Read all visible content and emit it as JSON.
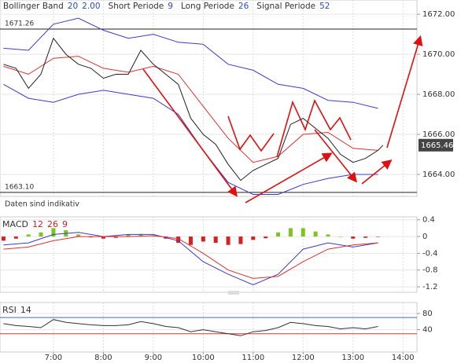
{
  "chart_data": [
    {
      "type": "line",
      "indicators": [
        {
          "name": "Bollinger Band",
          "params": [
            "20",
            "2.00"
          ]
        },
        {
          "name": "Short Periode",
          "params": [
            "9"
          ]
        },
        {
          "name": "Long Periode",
          "params": [
            "26"
          ]
        },
        {
          "name": "Signal Periode",
          "params": [
            "52"
          ]
        }
      ],
      "note": "Daten sind indikativ",
      "last_price": 1665.46,
      "hlines": [
        1671.26,
        {
          "value": 1663.1,
          "label": "1663.10"
        }
      ],
      "xlim": [
        5.93,
        14.28
      ],
      "ylim": [
        1662.9,
        1672.71
      ],
      "yticks": [
        {
          "value": 1672,
          "label": "1672.00"
        },
        {
          "value": 1670,
          "label": "1670.00"
        },
        {
          "value": 1668,
          "label": "1668.00"
        },
        {
          "value": 1666,
          "label": "1666.00"
        },
        {
          "value": 1664,
          "label": "1664.00"
        }
      ],
      "series": [
        {
          "color": "#3a3ad0",
          "x": [
            6.0,
            6.5,
            7.0,
            7.5,
            8.0,
            8.5,
            9.0,
            9.5,
            10.0,
            10.5,
            11.0,
            11.5,
            12.0,
            12.5,
            13.0,
            13.5
          ],
          "values": [
            1670.3,
            1670.2,
            1671.5,
            1671.8,
            1671.2,
            1670.8,
            1671.0,
            1670.6,
            1670.5,
            1669.5,
            1669.2,
            1668.5,
            1668.3,
            1667.7,
            1667.6,
            1667.3
          ]
        },
        {
          "color": "#3a3ad0",
          "x": [
            6.0,
            6.5,
            7.0,
            7.5,
            8.0,
            8.5,
            9.0,
            9.5,
            10.0,
            10.5,
            11.0,
            11.5,
            12.0,
            12.5,
            13.0,
            13.5
          ],
          "values": [
            1668.5,
            1667.8,
            1667.6,
            1668.0,
            1668.2,
            1668.0,
            1667.8,
            1667.0,
            1665.2,
            1663.6,
            1663.0,
            1663.0,
            1663.5,
            1663.8,
            1664.0,
            1664.0
          ]
        },
        {
          "color": "#e03030",
          "x": [
            6.0,
            6.5,
            7.0,
            7.5,
            8.0,
            8.5,
            9.0,
            9.5,
            10.0,
            10.5,
            11.0,
            11.5,
            12.0,
            12.5,
            13.0,
            13.5
          ],
          "values": [
            1669.4,
            1669.0,
            1669.8,
            1669.9,
            1669.3,
            1669.1,
            1669.4,
            1669.0,
            1667.4,
            1665.8,
            1664.6,
            1664.9,
            1666.0,
            1666.1,
            1665.3,
            1665.2
          ]
        },
        {
          "color": "#222222",
          "x": [
            6.0,
            6.25,
            6.5,
            6.75,
            7.0,
            7.25,
            7.5,
            7.75,
            8.0,
            8.25,
            8.5,
            8.75,
            9.0,
            9.25,
            9.5,
            9.75,
            10.0,
            10.25,
            10.5,
            10.75,
            11.0,
            11.25,
            11.5,
            11.75,
            12.0,
            12.25,
            12.5,
            12.75,
            13.0,
            13.25,
            13.5,
            13.6
          ],
          "values": [
            1669.5,
            1669.3,
            1668.3,
            1669.0,
            1670.8,
            1670.0,
            1669.5,
            1669.3,
            1668.8,
            1669.0,
            1669.0,
            1670.2,
            1669.5,
            1669.0,
            1668.5,
            1666.8,
            1666.0,
            1665.5,
            1664.5,
            1663.7,
            1664.2,
            1664.5,
            1664.8,
            1666.5,
            1666.8,
            1666.3,
            1665.8,
            1665.0,
            1664.6,
            1664.8,
            1665.2,
            1665.46
          ]
        }
      ]
    },
    {
      "type": "line",
      "title": "MACD",
      "params": [
        "12",
        "26",
        "9"
      ],
      "xlim": [
        5.93,
        14.28
      ],
      "ylim": [
        -1.33,
        0.47
      ],
      "yticks": [
        0.4,
        0,
        -0.4,
        -0.8,
        -1.2
      ],
      "series": [
        {
          "mark": "bar",
          "pos_color": "#7cc520",
          "neg_color": "#d92020",
          "x": [
            6.0,
            6.25,
            6.5,
            6.75,
            7.0,
            7.25,
            7.5,
            7.75,
            8.0,
            8.25,
            8.5,
            8.75,
            9.0,
            9.25,
            9.5,
            9.75,
            10.0,
            10.25,
            10.5,
            10.75,
            11.0,
            11.25,
            11.5,
            11.75,
            12.0,
            12.25,
            12.5,
            12.75,
            13.0,
            13.25,
            13.5
          ],
          "values": [
            -0.1,
            -0.05,
            0.05,
            0.1,
            0.2,
            0.15,
            0.05,
            -0.02,
            -0.05,
            -0.03,
            0.05,
            0.06,
            0.03,
            -0.05,
            -0.15,
            -0.2,
            -0.12,
            -0.15,
            -0.2,
            -0.18,
            -0.08,
            -0.04,
            0.1,
            0.2,
            0.2,
            0.12,
            0.05,
            0.0,
            -0.05,
            -0.03,
            -0.01
          ]
        },
        {
          "color": "#3a3ad0",
          "x": [
            6.0,
            6.5,
            7.0,
            7.5,
            8.0,
            8.5,
            9.0,
            9.5,
            10.0,
            10.5,
            11.0,
            11.5,
            12.0,
            12.5,
            13.0,
            13.5
          ],
          "values": [
            -0.2,
            -0.15,
            0.05,
            0.1,
            0.0,
            0.05,
            0.05,
            -0.1,
            -0.6,
            -0.9,
            -1.15,
            -0.9,
            -0.3,
            -0.15,
            -0.25,
            -0.15
          ]
        },
        {
          "color": "#e03030",
          "x": [
            6.0,
            6.5,
            7.0,
            7.5,
            8.0,
            8.5,
            9.0,
            9.5,
            10.0,
            10.5,
            11.0,
            11.5,
            12.0,
            12.5,
            13.0,
            13.5
          ],
          "values": [
            -0.3,
            -0.25,
            -0.1,
            0.0,
            0.0,
            0.0,
            0.02,
            -0.05,
            -0.4,
            -0.8,
            -1.0,
            -0.95,
            -0.6,
            -0.3,
            -0.2,
            -0.15
          ]
        }
      ]
    },
    {
      "type": "line",
      "title": "RSI",
      "params": [
        "14"
      ],
      "xlim": [
        5.93,
        14.28
      ],
      "ylim": [
        -15,
        107
      ],
      "yticks": [
        80,
        40
      ],
      "reference_lines": [
        {
          "value": 70,
          "color": "#3a6ad0"
        },
        {
          "value": 30,
          "color": "#e03030"
        }
      ],
      "xticks": [
        {
          "value": 7,
          "label": "7:00"
        },
        {
          "value": 8,
          "label": "8:00"
        },
        {
          "value": 9,
          "label": "9:00"
        },
        {
          "value": 10,
          "label": "10:00"
        },
        {
          "value": 11,
          "label": "11:00"
        },
        {
          "value": 12,
          "label": "12:00"
        },
        {
          "value": 13,
          "label": "13:00"
        },
        {
          "value": 14,
          "label": "14:00"
        }
      ],
      "series": [
        {
          "color": "#333333",
          "x": [
            6.0,
            6.25,
            6.5,
            6.75,
            7.0,
            7.25,
            7.5,
            7.75,
            8.0,
            8.25,
            8.5,
            8.75,
            9.0,
            9.25,
            9.5,
            9.75,
            10.0,
            10.25,
            10.5,
            10.75,
            11.0,
            11.25,
            11.5,
            11.75,
            12.0,
            12.25,
            12.5,
            12.75,
            13.0,
            13.25,
            13.5
          ],
          "values": [
            55,
            50,
            48,
            45,
            65,
            58,
            55,
            52,
            50,
            50,
            52,
            60,
            55,
            48,
            45,
            35,
            40,
            35,
            30,
            25,
            35,
            38,
            45,
            58,
            55,
            50,
            48,
            42,
            45,
            42,
            48
          ]
        }
      ]
    }
  ]
}
